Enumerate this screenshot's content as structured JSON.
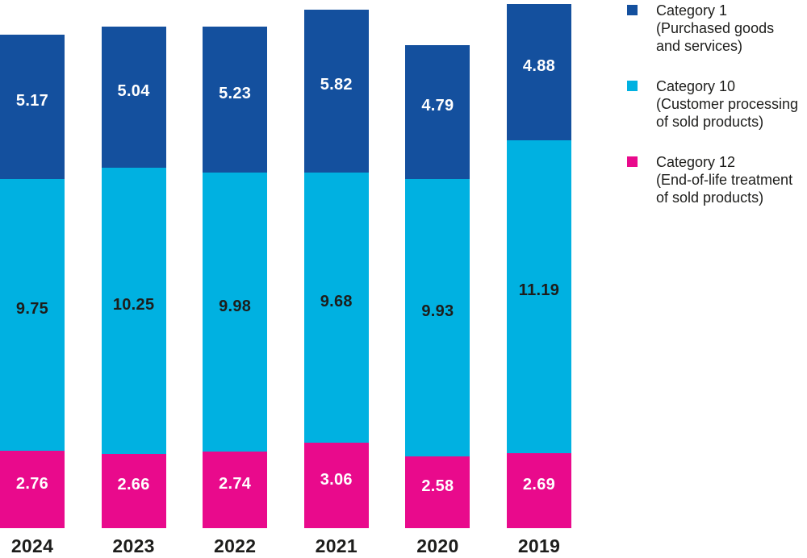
{
  "chart_data": {
    "type": "bar",
    "stacked": true,
    "title": "",
    "xlabel": "",
    "ylabel": "",
    "axes_visible": false,
    "grid": false,
    "value_labels": "inside-segments",
    "legend_position": "right",
    "categories": [
      "2024",
      "2023",
      "2022",
      "2021",
      "2020",
      "2019"
    ],
    "stack_order_bottom_to_top": [
      "category-12",
      "category-10",
      "category-1"
    ],
    "series": [
      {
        "id": "category-12",
        "name": "Category 12 (End-of-life treatment of sold products)",
        "color": "#E90A8C",
        "label_color": "#FFFFFF",
        "values": [
          2.76,
          2.66,
          2.74,
          3.06,
          2.58,
          2.69
        ]
      },
      {
        "id": "category-10",
        "name": "Category 10 (Customer processing of sold products)",
        "color": "#00B1E1",
        "label_color": "#1D1D1B",
        "values": [
          9.75,
          10.25,
          9.98,
          9.68,
          9.93,
          11.19
        ]
      },
      {
        "id": "category-1",
        "name": "Category 1 (Purchased goods and services)",
        "color": "#14509E",
        "label_color": "#FFFFFF",
        "values": [
          5.17,
          5.04,
          5.23,
          5.82,
          4.79,
          4.88
        ]
      }
    ],
    "totals": [
      17.68,
      17.95,
      17.95,
      18.56,
      17.3,
      18.76
    ]
  },
  "legend": {
    "items": [
      {
        "label": "Category 1",
        "desc_line1": "(Purchased goods",
        "desc_line2": "and services)",
        "color": "#14509E"
      },
      {
        "label": "Category 10",
        "desc_line1": "(Customer processing",
        "desc_line2": "of sold products)",
        "color": "#00B1E1"
      },
      {
        "label": "Category 12",
        "desc_line1": "(End-of-life treatment",
        "desc_line2": "of sold products)",
        "color": "#E90A8C"
      }
    ]
  },
  "colors": {
    "category_1_blue": "#14509E",
    "category_10_cyan": "#00B1E1",
    "category_12_magenta": "#E90A8C",
    "text_dark": "#1D1D1B",
    "background": "#FFFFFF"
  }
}
